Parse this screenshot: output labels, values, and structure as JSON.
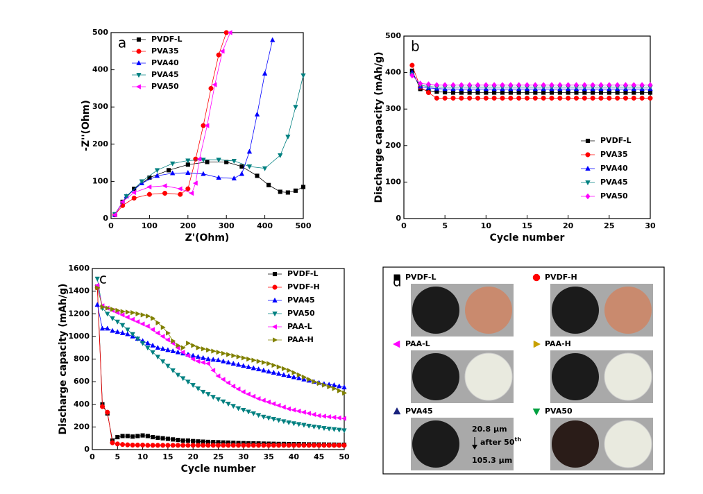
{
  "chart_data": [
    {
      "type": "scatter",
      "panel_label": "a",
      "x_label": "Z'(Ohm)",
      "y_label": "-Z''(Ohm)",
      "xlim": [
        0,
        500
      ],
      "xticks": [
        0,
        100,
        200,
        300,
        400,
        500
      ],
      "ylim": [
        0,
        500
      ],
      "yticks": [
        0,
        100,
        200,
        300,
        400,
        500
      ],
      "legend": "upper left",
      "series": [
        {
          "name": "PVDF-L",
          "color": "#000000",
          "marker": "square",
          "x": [
            10,
            30,
            60,
            100,
            150,
            200,
            250,
            300,
            340,
            380,
            410,
            440,
            460,
            480,
            500
          ],
          "values": [
            10,
            45,
            80,
            110,
            130,
            145,
            152,
            152,
            140,
            115,
            90,
            72,
            70,
            75,
            85
          ]
        },
        {
          "name": "PVA35",
          "color": "#ff0000",
          "marker": "circle",
          "x": [
            10,
            30,
            60,
            100,
            140,
            180,
            200,
            220,
            240,
            260,
            280,
            300
          ],
          "values": [
            10,
            35,
            55,
            65,
            68,
            65,
            80,
            160,
            250,
            350,
            440,
            500
          ]
        },
        {
          "name": "PVA40",
          "color": "#0000ff",
          "marker": "tri-up",
          "x": [
            10,
            40,
            80,
            120,
            160,
            200,
            240,
            280,
            320,
            340,
            360,
            380,
            400,
            420
          ],
          "values": [
            10,
            60,
            95,
            115,
            122,
            123,
            120,
            110,
            108,
            120,
            180,
            280,
            390,
            480
          ]
        },
        {
          "name": "PVA45",
          "color": "#008080",
          "marker": "tri-down",
          "x": [
            10,
            40,
            80,
            120,
            160,
            200,
            240,
            280,
            320,
            360,
            400,
            440,
            460,
            480,
            500
          ],
          "values": [
            12,
            60,
            100,
            130,
            148,
            156,
            158,
            158,
            155,
            140,
            135,
            170,
            220,
            300,
            385
          ]
        },
        {
          "name": "PVA50",
          "color": "#ff00ff",
          "marker": "tri-left",
          "x": [
            10,
            30,
            60,
            100,
            140,
            180,
            210,
            220,
            230,
            250,
            270,
            290,
            310
          ],
          "values": [
            10,
            45,
            70,
            85,
            88,
            80,
            68,
            95,
            160,
            250,
            360,
            450,
            500
          ]
        }
      ]
    },
    {
      "type": "line",
      "panel_label": "b",
      "x_label": "Cycle number",
      "y_label": "Discharge capacity (mAh/g)",
      "xlim": [
        0,
        30
      ],
      "xticks": [
        0,
        5,
        10,
        15,
        20,
        25,
        30
      ],
      "ylim": [
        0,
        500
      ],
      "yticks": [
        0,
        100,
        200,
        300,
        400,
        500
      ],
      "legend": "lower right",
      "x": [
        1,
        2,
        3,
        4,
        5,
        6,
        7,
        8,
        9,
        10,
        11,
        12,
        13,
        14,
        15,
        16,
        17,
        18,
        19,
        20,
        21,
        22,
        23,
        24,
        25,
        26,
        27,
        28,
        29,
        30
      ],
      "series": [
        {
          "name": "PVDF-L",
          "color": "#000000",
          "marker": "square",
          "values": [
            405,
            355,
            350,
            348,
            346,
            345,
            345,
            345,
            345,
            345,
            345,
            345,
            345,
            345,
            345,
            345,
            345,
            345,
            345,
            345,
            345,
            345,
            345,
            345,
            345,
            345,
            345,
            345,
            345,
            345
          ]
        },
        {
          "name": "PVA35",
          "color": "#ff0000",
          "marker": "circle",
          "values": [
            420,
            360,
            345,
            330,
            330,
            330,
            330,
            330,
            330,
            330,
            330,
            330,
            330,
            330,
            330,
            330,
            330,
            330,
            330,
            330,
            330,
            330,
            330,
            330,
            330,
            330,
            330,
            330,
            330,
            330
          ]
        },
        {
          "name": "PVA40",
          "color": "#0000ff",
          "marker": "tri-up",
          "values": [
            400,
            362,
            358,
            356,
            355,
            355,
            355,
            355,
            355,
            355,
            355,
            355,
            355,
            355,
            355,
            355,
            355,
            355,
            355,
            355,
            355,
            355,
            355,
            355,
            355,
            355,
            355,
            355,
            355,
            355
          ]
        },
        {
          "name": "PVA45",
          "color": "#008080",
          "marker": "tri-down",
          "values": [
            395,
            365,
            362,
            360,
            360,
            360,
            360,
            360,
            360,
            360,
            360,
            360,
            360,
            360,
            360,
            360,
            360,
            360,
            360,
            360,
            360,
            360,
            360,
            360,
            360,
            360,
            360,
            360,
            360,
            360
          ]
        },
        {
          "name": "PVA50",
          "color": "#ff00ff",
          "marker": "diamond",
          "values": [
            392,
            370,
            368,
            366,
            366,
            366,
            366,
            366,
            366,
            366,
            366,
            366,
            366,
            366,
            366,
            366,
            366,
            366,
            366,
            366,
            366,
            366,
            366,
            366,
            366,
            366,
            366,
            366,
            366,
            366
          ]
        }
      ]
    },
    {
      "type": "line",
      "panel_label": "c",
      "x_label": "Cycle number",
      "y_label": "Discharge capacity (mAh/g)",
      "xlim": [
        0,
        50
      ],
      "xticks": [
        0,
        5,
        10,
        15,
        20,
        25,
        30,
        35,
        40,
        45,
        50
      ],
      "ylim": [
        0,
        1600
      ],
      "yticks": [
        0,
        200,
        400,
        600,
        800,
        1000,
        1200,
        1400,
        1600
      ],
      "legend": "upper right",
      "x": [
        1,
        2,
        3,
        4,
        5,
        6,
        7,
        8,
        9,
        10,
        11,
        12,
        13,
        14,
        15,
        16,
        17,
        18,
        19,
        20,
        21,
        22,
        23,
        24,
        25,
        26,
        27,
        28,
        29,
        30,
        31,
        32,
        33,
        34,
        35,
        36,
        37,
        38,
        39,
        40,
        41,
        42,
        43,
        44,
        45,
        46,
        47,
        48,
        49,
        50
      ],
      "series": [
        {
          "name": "PVDF-L",
          "color": "#000000",
          "marker": "square",
          "values": [
            1440,
            400,
            320,
            80,
            110,
            120,
            120,
            115,
            120,
            125,
            120,
            110,
            105,
            100,
            95,
            90,
            85,
            80,
            80,
            75,
            72,
            70,
            68,
            66,
            65,
            63,
            62,
            60,
            58,
            57,
            56,
            55,
            54,
            53,
            52,
            51,
            50,
            50,
            49,
            48,
            48,
            47,
            46,
            46,
            45,
            45,
            44,
            44,
            43,
            43
          ]
        },
        {
          "name": "PVDF-H",
          "color": "#ff0000",
          "marker": "circle",
          "values": [
            1430,
            380,
            330,
            60,
            50,
            45,
            42,
            40,
            40,
            40,
            38,
            38,
            38,
            38,
            38,
            38,
            38,
            38,
            38,
            38,
            38,
            38,
            38,
            38,
            38,
            38,
            38,
            38,
            38,
            38,
            38,
            38,
            38,
            38,
            38,
            38,
            38,
            38,
            38,
            38,
            38,
            38,
            38,
            38,
            38,
            38,
            38,
            38,
            38,
            38
          ]
        },
        {
          "name": "PVA45",
          "color": "#0000ff",
          "marker": "tri-up",
          "values": [
            1280,
            1070,
            1070,
            1050,
            1040,
            1030,
            1020,
            1000,
            980,
            960,
            940,
            920,
            900,
            890,
            880,
            870,
            860,
            850,
            840,
            830,
            820,
            810,
            800,
            795,
            790,
            780,
            770,
            760,
            750,
            740,
            730,
            720,
            710,
            700,
            690,
            680,
            670,
            660,
            650,
            640,
            630,
            620,
            610,
            600,
            590,
            580,
            575,
            570,
            560,
            550
          ]
        },
        {
          "name": "PVA50",
          "color": "#008080",
          "marker": "tri-down",
          "values": [
            1510,
            1250,
            1200,
            1160,
            1130,
            1100,
            1060,
            1020,
            980,
            940,
            900,
            860,
            820,
            780,
            740,
            700,
            660,
            630,
            600,
            570,
            540,
            510,
            490,
            465,
            445,
            425,
            405,
            385,
            365,
            350,
            335,
            320,
            305,
            290,
            280,
            270,
            260,
            250,
            240,
            232,
            225,
            218,
            210,
            203,
            197,
            190,
            185,
            180,
            175,
            170
          ]
        },
        {
          "name": "PAA-L",
          "color": "#ff00ff",
          "marker": "tri-left",
          "values": [
            1450,
            1270,
            1250,
            1230,
            1210,
            1190,
            1170,
            1150,
            1130,
            1110,
            1090,
            1060,
            1030,
            1000,
            970,
            940,
            900,
            860,
            830,
            800,
            780,
            770,
            760,
            700,
            650,
            620,
            590,
            560,
            535,
            510,
            490,
            470,
            450,
            435,
            420,
            405,
            390,
            375,
            360,
            350,
            340,
            330,
            320,
            310,
            300,
            295,
            290,
            285,
            280,
            275
          ]
        },
        {
          "name": "PAA-H",
          "color": "#808000",
          "marker": "tri-right",
          "values": [
            1430,
            1260,
            1250,
            1240,
            1230,
            1220,
            1215,
            1210,
            1200,
            1190,
            1180,
            1160,
            1120,
            1080,
            1030,
            960,
            920,
            900,
            940,
            920,
            900,
            890,
            880,
            870,
            860,
            850,
            840,
            830,
            820,
            810,
            800,
            790,
            780,
            770,
            760,
            745,
            730,
            715,
            700,
            680,
            660,
            640,
            620,
            600,
            585,
            570,
            555,
            540,
            520,
            500
          ]
        }
      ]
    }
  ],
  "photo_panel": {
    "label": "d",
    "samples": [
      {
        "name": "PVDF-L",
        "color": "#000000",
        "marker": "square"
      },
      {
        "name": "PVDF-H",
        "color": "#ff0000",
        "marker": "circle"
      },
      {
        "name": "PAA-L",
        "color": "#ff00ff",
        "marker": "tri-left"
      },
      {
        "name": "PAA-H",
        "color": "#c8a000",
        "marker": "tri-right"
      },
      {
        "name": "PVA45",
        "color": "#1a237e",
        "marker": "tri-up"
      },
      {
        "name": "PVA50",
        "color": "#00a040",
        "marker": "tri-down"
      }
    ],
    "thickness_before": "20.8 μm",
    "after_text": "after 50",
    "after_sup": "th",
    "thickness_after": "105.3 μm"
  }
}
